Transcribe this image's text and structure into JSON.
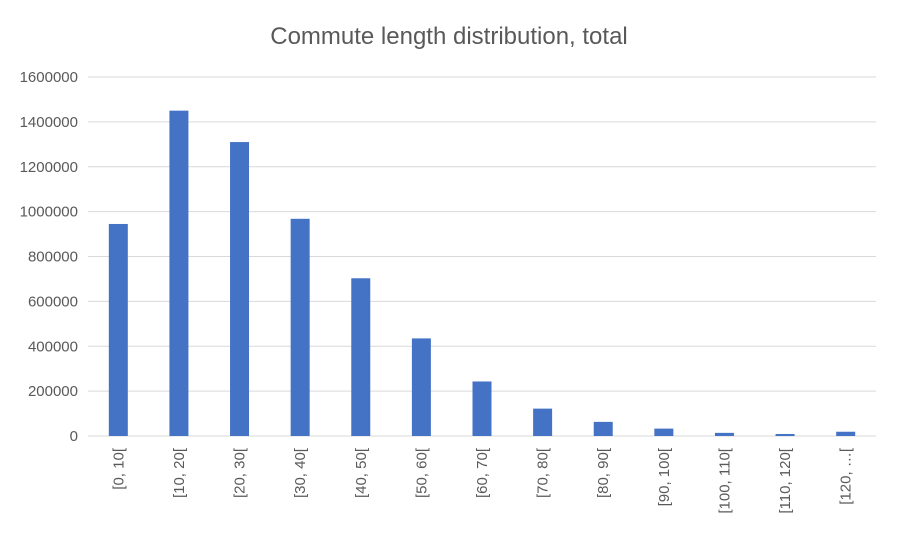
{
  "chart_data": {
    "type": "bar",
    "title": "Commute length distribution, total",
    "xlabel": "",
    "ylabel": "",
    "categories": [
      "[0, 10[",
      "[10, 20[",
      "[20, 30[",
      "[30, 40[",
      "[40, 50[",
      "[50, 60[",
      "[60, 70[",
      "[70, 80[",
      "[80, 90[",
      "[90, 100[",
      "[100, 110[",
      "[110, 120[",
      "[120, …["
    ],
    "values": [
      945000,
      1450000,
      1310000,
      968000,
      703000,
      435000,
      243000,
      122000,
      63000,
      33000,
      14000,
      9000,
      19000
    ],
    "ylim": [
      0,
      1600000
    ],
    "yticks": [
      "0",
      "200000",
      "400000",
      "600000",
      "800000",
      "1000000",
      "1200000",
      "1400000",
      "1600000"
    ],
    "grid": true,
    "bar_color": "#4472C4",
    "grid_color": "#d9d9d9"
  }
}
